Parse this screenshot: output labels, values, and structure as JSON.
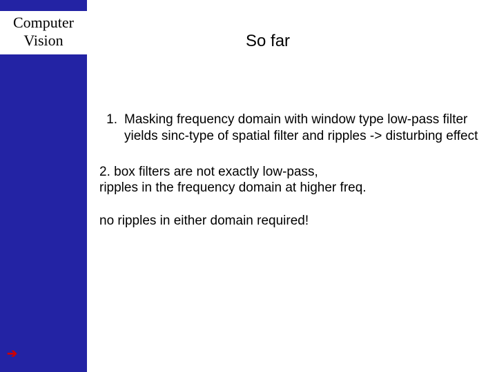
{
  "sidebar": {
    "title_line1": "Computer",
    "title_line2": "Vision",
    "arrow_glyph": "➔",
    "bg_color": "#2323a4",
    "arrow_color": "#cc0000"
  },
  "slide": {
    "title": "So far",
    "item1_number": "1.",
    "item1_text": "Masking frequency domain with window type low-pass filter yields sinc-type of spatial filter and ripples -> disturbing effect",
    "item2_line1": "2.  box filters are not exactly low-pass,",
    "item2_line2": "ripples in the frequency domain at higher freq.",
    "conclusion": "no ripples in either domain required!",
    "title_fontsize": 24,
    "body_fontsize": 19,
    "text_color": "#000000",
    "bg_color": "#ffffff"
  }
}
